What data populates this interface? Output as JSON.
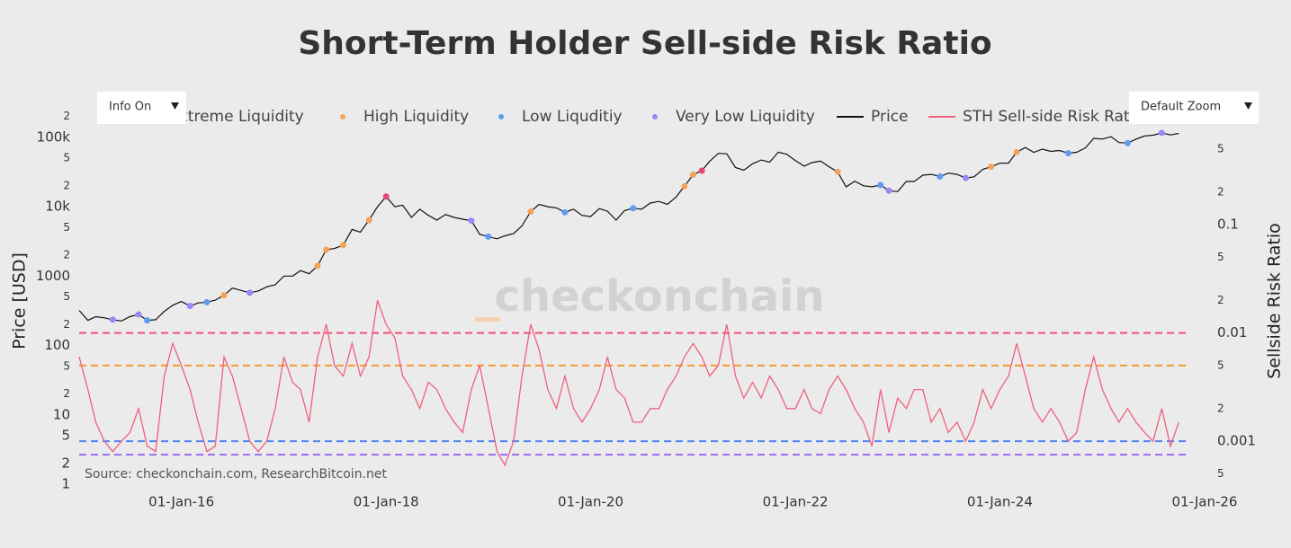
{
  "chart_data": {
    "type": "line",
    "title": "Short-Term Holder Sell-side Risk Ratio",
    "ylabel": "Price [USD]",
    "y2label": "Sellside Risk Ratio",
    "source": "Source: checkonchain.com, ResearchBitcoin.net",
    "watermark": "checkonchain",
    "controls": {
      "info": "Info On",
      "zoom": "Default Zoom"
    },
    "log_y": true,
    "log_y2": true,
    "grid": false,
    "xlim": [
      "2015-01-01",
      "2025-11-01"
    ],
    "xticks": [
      {
        "value": "2016-01-01",
        "label": "01-Jan-16"
      },
      {
        "value": "2018-01-01",
        "label": "01-Jan-18"
      },
      {
        "value": "2020-01-01",
        "label": "01-Jan-20"
      },
      {
        "value": "2022-01-01",
        "label": "01-Jan-22"
      },
      {
        "value": "2024-01-01",
        "label": "01-Jan-24"
      },
      {
        "value": "2026-01-01",
        "label": "01-Jan-26"
      }
    ],
    "ylim": [
      1,
      300000
    ],
    "yticks": [
      1,
      2,
      5,
      10,
      {
        "value": 20,
        "label": "2"
      },
      {
        "value": 50,
        "label": "5"
      },
      100,
      {
        "value": 200,
        "label": "2"
      },
      {
        "value": 500,
        "label": "5"
      },
      1000,
      {
        "value": 2000,
        "label": "2"
      },
      {
        "value": 5000,
        "label": "5"
      },
      {
        "value": 10000,
        "label": "10k"
      },
      {
        "value": 20000,
        "label": "2"
      },
      {
        "value": 50000,
        "label": "5"
      },
      {
        "value": 100000,
        "label": "100k"
      },
      {
        "value": 200000,
        "label": "2"
      }
    ],
    "y2lim": [
      0.0004,
      1.3
    ],
    "y2ticks": [
      {
        "value": 0.0005,
        "label": "5"
      },
      0.001,
      {
        "value": 0.002,
        "label": "2"
      },
      {
        "value": 0.005,
        "label": "5"
      },
      0.01,
      {
        "value": 0.02,
        "label": "2"
      },
      {
        "value": 0.05,
        "label": "5"
      },
      0.1,
      {
        "value": 0.2,
        "label": "2"
      },
      {
        "value": 0.5,
        "label": "5"
      }
    ],
    "thresholds": [
      {
        "value": 0.01,
        "color": "#f0507a"
      },
      {
        "value": 0.005,
        "color": "#f39a2c"
      },
      {
        "value": 0.001,
        "color": "#4d82f3"
      },
      {
        "value": 0.00075,
        "color": "#9b6cf2"
      }
    ],
    "x": [
      "2015-01-01",
      "2015-02-01",
      "2015-03-01",
      "2015-04-01",
      "2015-05-01",
      "2015-06-01",
      "2015-07-01",
      "2015-08-01",
      "2015-09-01",
      "2015-10-01",
      "2015-11-01",
      "2015-12-01",
      "2016-01-01",
      "2016-02-01",
      "2016-03-01",
      "2016-04-01",
      "2016-05-01",
      "2016-06-01",
      "2016-07-01",
      "2016-08-01",
      "2016-09-01",
      "2016-10-01",
      "2016-11-01",
      "2016-12-01",
      "2017-01-01",
      "2017-02-01",
      "2017-03-01",
      "2017-04-01",
      "2017-05-01",
      "2017-06-01",
      "2017-07-01",
      "2017-08-01",
      "2017-09-01",
      "2017-10-01",
      "2017-11-01",
      "2017-12-01",
      "2018-01-01",
      "2018-02-01",
      "2018-03-01",
      "2018-04-01",
      "2018-05-01",
      "2018-06-01",
      "2018-07-01",
      "2018-08-01",
      "2018-09-01",
      "2018-10-01",
      "2018-11-01",
      "2018-12-01",
      "2019-01-01",
      "2019-02-01",
      "2019-03-01",
      "2019-04-01",
      "2019-05-01",
      "2019-06-01",
      "2019-07-01",
      "2019-08-01",
      "2019-09-01",
      "2019-10-01",
      "2019-11-01",
      "2019-12-01",
      "2020-01-01",
      "2020-02-01",
      "2020-03-01",
      "2020-04-01",
      "2020-05-01",
      "2020-06-01",
      "2020-07-01",
      "2020-08-01",
      "2020-09-01",
      "2020-10-01",
      "2020-11-01",
      "2020-12-01",
      "2021-01-01",
      "2021-02-01",
      "2021-03-01",
      "2021-04-01",
      "2021-05-01",
      "2021-06-01",
      "2021-07-01",
      "2021-08-01",
      "2021-09-01",
      "2021-10-01",
      "2021-11-01",
      "2021-12-01",
      "2022-01-01",
      "2022-02-01",
      "2022-03-01",
      "2022-04-01",
      "2022-05-01",
      "2022-06-01",
      "2022-07-01",
      "2022-08-01",
      "2022-09-01",
      "2022-10-01",
      "2022-11-01",
      "2022-12-01",
      "2023-01-01",
      "2023-02-01",
      "2023-03-01",
      "2023-04-01",
      "2023-05-01",
      "2023-06-01",
      "2023-07-01",
      "2023-08-01",
      "2023-09-01",
      "2023-10-01",
      "2023-11-01",
      "2023-12-01",
      "2024-01-01",
      "2024-02-01",
      "2024-03-01",
      "2024-04-01",
      "2024-05-01",
      "2024-06-01",
      "2024-07-01",
      "2024-08-01",
      "2024-09-01",
      "2024-10-01",
      "2024-11-01",
      "2024-12-01",
      "2025-01-01",
      "2025-02-01",
      "2025-03-01",
      "2025-04-01",
      "2025-05-01",
      "2025-06-01",
      "2025-07-01",
      "2025-08-01",
      "2025-09-01",
      "2025-10-01"
    ],
    "series": [
      {
        "name": "Price",
        "color": "#111111",
        "mode": "line",
        "values": [
          320,
          230,
          260,
          250,
          235,
          225,
          260,
          280,
          230,
          235,
          310,
          380,
          430,
          370,
          410,
          420,
          450,
          530,
          670,
          620,
          575,
          610,
          700,
          750,
          1000,
          1000,
          1200,
          1080,
          1400,
          2400,
          2500,
          2800,
          4700,
          4300,
          6400,
          10000,
          14000,
          10000,
          10500,
          7000,
          9200,
          7500,
          6400,
          7700,
          7000,
          6600,
          6300,
          4000,
          3700,
          3450,
          3800,
          4100,
          5300,
          8500,
          10800,
          10000,
          9600,
          8300,
          9200,
          7500,
          7200,
          9400,
          8600,
          6400,
          8800,
          9500,
          9200,
          11300,
          11900,
          10800,
          13800,
          19700,
          29000,
          33000,
          45000,
          58800,
          57800,
          36700,
          33500,
          41500,
          47100,
          43800,
          61000,
          57000,
          46300,
          38500,
          43200,
          45500,
          37700,
          31800,
          19300,
          23300,
          20000,
          19400,
          20500,
          17000,
          16500,
          23100,
          23100,
          28500,
          29200,
          27200,
          30500,
          29200,
          25900,
          27000,
          34500,
          37700,
          42300,
          42500,
          61200,
          71300,
          60600,
          67500,
          62700,
          64600,
          59000,
          60800,
          70200,
          96500,
          94400,
          102400,
          84300,
          82500,
          94200,
          104600,
          107100,
          115700,
          108200,
          114000
        ]
      },
      {
        "name": "STH Sell-side Risk Ratio",
        "color": "#f0607f",
        "mode": "line",
        "axis": "y2",
        "values": [
          0.006,
          0.003,
          0.0015,
          0.001,
          0.0008,
          0.001,
          0.0012,
          0.002,
          0.0009,
          0.0008,
          0.004,
          0.008,
          0.005,
          0.003,
          0.0015,
          0.0008,
          0.0009,
          0.006,
          0.004,
          0.002,
          0.001,
          0.0008,
          0.001,
          0.002,
          0.006,
          0.0035,
          0.003,
          0.0015,
          0.006,
          0.012,
          0.005,
          0.004,
          0.008,
          0.004,
          0.006,
          0.02,
          0.012,
          0.009,
          0.004,
          0.003,
          0.002,
          0.0035,
          0.003,
          0.002,
          0.0015,
          0.0012,
          0.003,
          0.005,
          0.002,
          0.0008,
          0.0006,
          0.001,
          0.004,
          0.012,
          0.007,
          0.003,
          0.002,
          0.004,
          0.002,
          0.0015,
          0.002,
          0.003,
          0.006,
          0.003,
          0.0025,
          0.0015,
          0.0015,
          0.002,
          0.002,
          0.003,
          0.004,
          0.006,
          0.008,
          0.006,
          0.004,
          0.005,
          0.012,
          0.004,
          0.0025,
          0.0035,
          0.0025,
          0.004,
          0.003,
          0.002,
          0.002,
          0.003,
          0.002,
          0.0018,
          0.003,
          0.004,
          0.003,
          0.002,
          0.0015,
          0.0009,
          0.003,
          0.0012,
          0.0025,
          0.002,
          0.003,
          0.003,
          0.0015,
          0.002,
          0.0012,
          0.0015,
          0.001,
          0.0015,
          0.003,
          0.002,
          0.003,
          0.004,
          0.008,
          0.004,
          0.002,
          0.0015,
          0.002,
          0.0015,
          0.001,
          0.0012,
          0.003,
          0.006,
          0.003,
          0.002,
          0.0015,
          0.002,
          0.0015,
          0.0012,
          0.001,
          0.002,
          0.0009,
          0.0015
        ]
      },
      {
        "name": "Extreme Liquidity",
        "color": "#e8457a",
        "mode": "markers",
        "x": [
          "2018-01-01",
          "2021-02-01"
        ],
        "values": [
          14000,
          33000
        ]
      },
      {
        "name": "High Liquidity",
        "color": "#f6a25a",
        "mode": "markers",
        "x": [
          "2016-06-01",
          "2017-05-01",
          "2017-06-01",
          "2017-08-01",
          "2017-11-01",
          "2019-06-01",
          "2020-12-01",
          "2021-01-01",
          "2022-06-01",
          "2023-12-01",
          "2024-03-01"
        ],
        "values": [
          530,
          1400,
          2400,
          2800,
          6400,
          8500,
          19700,
          29000,
          31800,
          37700,
          61200
        ]
      },
      {
        "name": "Low Liquditiy",
        "color": "#5f9cf0",
        "mode": "markers",
        "x": [
          "2015-09-01",
          "2016-04-01",
          "2019-01-01",
          "2019-10-01",
          "2020-06-01",
          "2022-11-01",
          "2023-06-01",
          "2024-09-01",
          "2025-04-01"
        ],
        "values": [
          230,
          420,
          3700,
          8300,
          9500,
          20500,
          27200,
          59000,
          82500
        ]
      },
      {
        "name": "Very Low Liquidity",
        "color": "#9a86f6",
        "mode": "markers",
        "x": [
          "2015-05-01",
          "2015-08-01",
          "2016-02-01",
          "2016-09-01",
          "2018-11-01",
          "2022-12-01",
          "2023-09-01",
          "2025-08-01"
        ],
        "values": [
          235,
          280,
          370,
          575,
          6300,
          17000,
          25900,
          115700
        ]
      }
    ],
    "legend_order": [
      2,
      3,
      4,
      5,
      0,
      1
    ]
  }
}
